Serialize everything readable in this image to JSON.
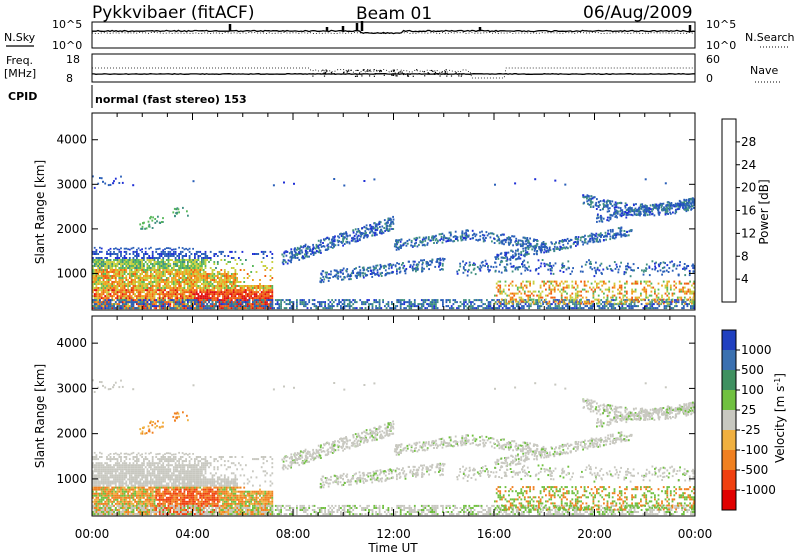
{
  "header": {
    "station": "Pykkvibaer (fitACF)",
    "beam": "Beam 01",
    "date": "06/Aug/2009"
  },
  "strip_labels": {
    "nsky": "N.Sky",
    "nsky_ticks": [
      "10^5",
      "10^0"
    ],
    "nsearch": "N.Search",
    "nsearch_ticks": [
      "10^5",
      "10^0"
    ],
    "freq": "Freq.",
    "freq_unit": "[MHz]",
    "freq_ticks": [
      "18",
      "8"
    ],
    "nave": "Nave",
    "nave_ticks": [
      "60",
      "0"
    ],
    "cpid": "CPID",
    "cpid_value": "normal (fast stereo) 153"
  },
  "chart_data": [
    {
      "type": "heatmap",
      "panel": "power",
      "ylabel": "Slant Range [km]",
      "xlabel": "Time UT",
      "x_ticks": [
        "00:00",
        "04:00",
        "08:00",
        "12:00",
        "16:00",
        "20:00",
        "00:00"
      ],
      "xlim_hours": [
        0,
        24
      ],
      "y_ticks": [
        1000,
        2000,
        3000,
        4000
      ],
      "ylim": [
        180,
        4600
      ],
      "colorbar": {
        "label": "Power [dB]",
        "ticks": [
          4,
          8,
          12,
          16,
          20,
          24,
          28
        ],
        "range": [
          0,
          32
        ],
        "colors": [
          "#1f2fd6",
          "#2a5fb8",
          "#3f8f80",
          "#58b85a",
          "#c8d040",
          "#f0a020",
          "#f06010",
          "#e01010"
        ]
      }
    },
    {
      "type": "heatmap",
      "panel": "velocity",
      "ylabel": "Slant Range [km]",
      "xlabel": "Time UT",
      "x_ticks": [
        "00:00",
        "04:00",
        "08:00",
        "12:00",
        "16:00",
        "20:00",
        "00:00"
      ],
      "xlim_hours": [
        0,
        24
      ],
      "y_ticks": [
        1000,
        2000,
        3000,
        4000
      ],
      "ylim": [
        180,
        4600
      ],
      "colorbar": {
        "label": "Velocity [m s^-1]",
        "ticks": [
          "1000",
          "500",
          "100",
          "25",
          "-25",
          "-100",
          "-500",
          "-1000"
        ],
        "colors": [
          "#2040c0",
          "#3a70b0",
          "#3f9060",
          "#70c040",
          "#c8c8c0",
          "#f0b040",
          "#f08020",
          "#f04010",
          "#e00000"
        ]
      }
    }
  ]
}
